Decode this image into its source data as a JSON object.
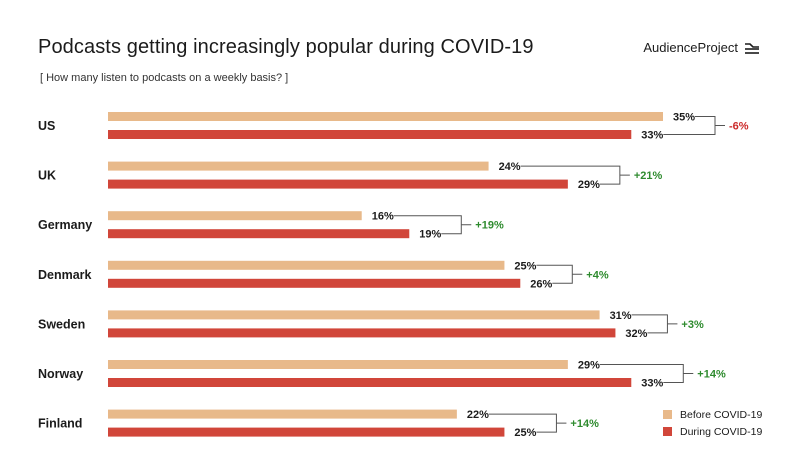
{
  "header": {
    "title": "Podcasts getting increasingly popular during COVID-19",
    "subtitle": "[ How many listen to podcasts on a weekly basis? ]",
    "brand": "AudienceProject"
  },
  "colors": {
    "before": "#e8b98a",
    "during": "#d1463a",
    "positive": "#2e8b2e",
    "negative": "#cc2a2a",
    "bracket": "#555555",
    "text": "#1b1b1b"
  },
  "chart_data": {
    "type": "bar",
    "orientation": "horizontal",
    "title": "Podcasts getting increasingly popular during COVID-19",
    "subtitle": "[ How many listen to podcasts on a weekly basis? ]",
    "categories": [
      "US",
      "UK",
      "Germany",
      "Denmark",
      "Sweden",
      "Norway",
      "Finland"
    ],
    "series": [
      {
        "name": "Before COVID-19",
        "values": [
          35,
          24,
          16,
          25,
          31,
          29,
          22
        ],
        "labels": [
          "35%",
          "24%",
          "16%",
          "25%",
          "31%",
          "29%",
          "22%"
        ]
      },
      {
        "name": "During COVID-19",
        "values": [
          33,
          29,
          19,
          26,
          32,
          33,
          25
        ],
        "labels": [
          "33%",
          "29%",
          "19%",
          "26%",
          "32%",
          "33%",
          "25%"
        ]
      }
    ],
    "changes": [
      "-6%",
      "+21%",
      "+19%",
      "+4%",
      "+3%",
      "+14%",
      "+14%"
    ],
    "xlim": [
      0,
      35
    ],
    "grid": false,
    "legend": "bottom-right"
  }
}
